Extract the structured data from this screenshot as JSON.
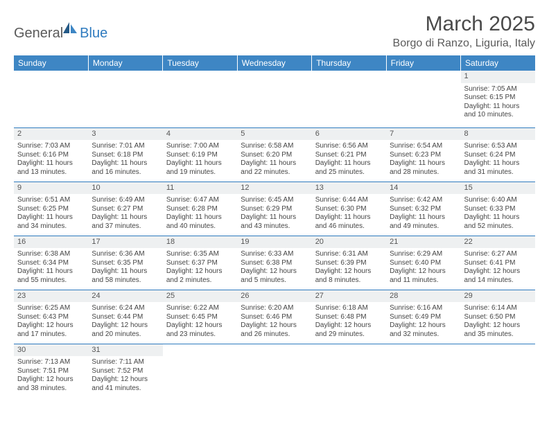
{
  "logo": {
    "word1": "General",
    "word2": "Blue"
  },
  "title": "March 2025",
  "location": "Borgo di Ranzo, Liguria, Italy",
  "colors": {
    "header_bg": "#3e86c4",
    "header_text": "#ffffff",
    "border": "#2f7bbf",
    "daynum_bg": "#eef0f1",
    "text": "#444444"
  },
  "weekdays": [
    "Sunday",
    "Monday",
    "Tuesday",
    "Wednesday",
    "Thursday",
    "Friday",
    "Saturday"
  ],
  "weeks": [
    [
      {
        "n": "",
        "sr": "",
        "ss": "",
        "dl": ""
      },
      {
        "n": "",
        "sr": "",
        "ss": "",
        "dl": ""
      },
      {
        "n": "",
        "sr": "",
        "ss": "",
        "dl": ""
      },
      {
        "n": "",
        "sr": "",
        "ss": "",
        "dl": ""
      },
      {
        "n": "",
        "sr": "",
        "ss": "",
        "dl": ""
      },
      {
        "n": "",
        "sr": "",
        "ss": "",
        "dl": ""
      },
      {
        "n": "1",
        "sr": "Sunrise: 7:05 AM",
        "ss": "Sunset: 6:15 PM",
        "dl": "Daylight: 11 hours and 10 minutes."
      }
    ],
    [
      {
        "n": "2",
        "sr": "Sunrise: 7:03 AM",
        "ss": "Sunset: 6:16 PM",
        "dl": "Daylight: 11 hours and 13 minutes."
      },
      {
        "n": "3",
        "sr": "Sunrise: 7:01 AM",
        "ss": "Sunset: 6:18 PM",
        "dl": "Daylight: 11 hours and 16 minutes."
      },
      {
        "n": "4",
        "sr": "Sunrise: 7:00 AM",
        "ss": "Sunset: 6:19 PM",
        "dl": "Daylight: 11 hours and 19 minutes."
      },
      {
        "n": "5",
        "sr": "Sunrise: 6:58 AM",
        "ss": "Sunset: 6:20 PM",
        "dl": "Daylight: 11 hours and 22 minutes."
      },
      {
        "n": "6",
        "sr": "Sunrise: 6:56 AM",
        "ss": "Sunset: 6:21 PM",
        "dl": "Daylight: 11 hours and 25 minutes."
      },
      {
        "n": "7",
        "sr": "Sunrise: 6:54 AM",
        "ss": "Sunset: 6:23 PM",
        "dl": "Daylight: 11 hours and 28 minutes."
      },
      {
        "n": "8",
        "sr": "Sunrise: 6:53 AM",
        "ss": "Sunset: 6:24 PM",
        "dl": "Daylight: 11 hours and 31 minutes."
      }
    ],
    [
      {
        "n": "9",
        "sr": "Sunrise: 6:51 AM",
        "ss": "Sunset: 6:25 PM",
        "dl": "Daylight: 11 hours and 34 minutes."
      },
      {
        "n": "10",
        "sr": "Sunrise: 6:49 AM",
        "ss": "Sunset: 6:27 PM",
        "dl": "Daylight: 11 hours and 37 minutes."
      },
      {
        "n": "11",
        "sr": "Sunrise: 6:47 AM",
        "ss": "Sunset: 6:28 PM",
        "dl": "Daylight: 11 hours and 40 minutes."
      },
      {
        "n": "12",
        "sr": "Sunrise: 6:45 AM",
        "ss": "Sunset: 6:29 PM",
        "dl": "Daylight: 11 hours and 43 minutes."
      },
      {
        "n": "13",
        "sr": "Sunrise: 6:44 AM",
        "ss": "Sunset: 6:30 PM",
        "dl": "Daylight: 11 hours and 46 minutes."
      },
      {
        "n": "14",
        "sr": "Sunrise: 6:42 AM",
        "ss": "Sunset: 6:32 PM",
        "dl": "Daylight: 11 hours and 49 minutes."
      },
      {
        "n": "15",
        "sr": "Sunrise: 6:40 AM",
        "ss": "Sunset: 6:33 PM",
        "dl": "Daylight: 11 hours and 52 minutes."
      }
    ],
    [
      {
        "n": "16",
        "sr": "Sunrise: 6:38 AM",
        "ss": "Sunset: 6:34 PM",
        "dl": "Daylight: 11 hours and 55 minutes."
      },
      {
        "n": "17",
        "sr": "Sunrise: 6:36 AM",
        "ss": "Sunset: 6:35 PM",
        "dl": "Daylight: 11 hours and 58 minutes."
      },
      {
        "n": "18",
        "sr": "Sunrise: 6:35 AM",
        "ss": "Sunset: 6:37 PM",
        "dl": "Daylight: 12 hours and 2 minutes."
      },
      {
        "n": "19",
        "sr": "Sunrise: 6:33 AM",
        "ss": "Sunset: 6:38 PM",
        "dl": "Daylight: 12 hours and 5 minutes."
      },
      {
        "n": "20",
        "sr": "Sunrise: 6:31 AM",
        "ss": "Sunset: 6:39 PM",
        "dl": "Daylight: 12 hours and 8 minutes."
      },
      {
        "n": "21",
        "sr": "Sunrise: 6:29 AM",
        "ss": "Sunset: 6:40 PM",
        "dl": "Daylight: 12 hours and 11 minutes."
      },
      {
        "n": "22",
        "sr": "Sunrise: 6:27 AM",
        "ss": "Sunset: 6:41 PM",
        "dl": "Daylight: 12 hours and 14 minutes."
      }
    ],
    [
      {
        "n": "23",
        "sr": "Sunrise: 6:25 AM",
        "ss": "Sunset: 6:43 PM",
        "dl": "Daylight: 12 hours and 17 minutes."
      },
      {
        "n": "24",
        "sr": "Sunrise: 6:24 AM",
        "ss": "Sunset: 6:44 PM",
        "dl": "Daylight: 12 hours and 20 minutes."
      },
      {
        "n": "25",
        "sr": "Sunrise: 6:22 AM",
        "ss": "Sunset: 6:45 PM",
        "dl": "Daylight: 12 hours and 23 minutes."
      },
      {
        "n": "26",
        "sr": "Sunrise: 6:20 AM",
        "ss": "Sunset: 6:46 PM",
        "dl": "Daylight: 12 hours and 26 minutes."
      },
      {
        "n": "27",
        "sr": "Sunrise: 6:18 AM",
        "ss": "Sunset: 6:48 PM",
        "dl": "Daylight: 12 hours and 29 minutes."
      },
      {
        "n": "28",
        "sr": "Sunrise: 6:16 AM",
        "ss": "Sunset: 6:49 PM",
        "dl": "Daylight: 12 hours and 32 minutes."
      },
      {
        "n": "29",
        "sr": "Sunrise: 6:14 AM",
        "ss": "Sunset: 6:50 PM",
        "dl": "Daylight: 12 hours and 35 minutes."
      }
    ],
    [
      {
        "n": "30",
        "sr": "Sunrise: 7:13 AM",
        "ss": "Sunset: 7:51 PM",
        "dl": "Daylight: 12 hours and 38 minutes."
      },
      {
        "n": "31",
        "sr": "Sunrise: 7:11 AM",
        "ss": "Sunset: 7:52 PM",
        "dl": "Daylight: 12 hours and 41 minutes."
      },
      {
        "n": "",
        "sr": "",
        "ss": "",
        "dl": ""
      },
      {
        "n": "",
        "sr": "",
        "ss": "",
        "dl": ""
      },
      {
        "n": "",
        "sr": "",
        "ss": "",
        "dl": ""
      },
      {
        "n": "",
        "sr": "",
        "ss": "",
        "dl": ""
      },
      {
        "n": "",
        "sr": "",
        "ss": "",
        "dl": ""
      }
    ]
  ]
}
